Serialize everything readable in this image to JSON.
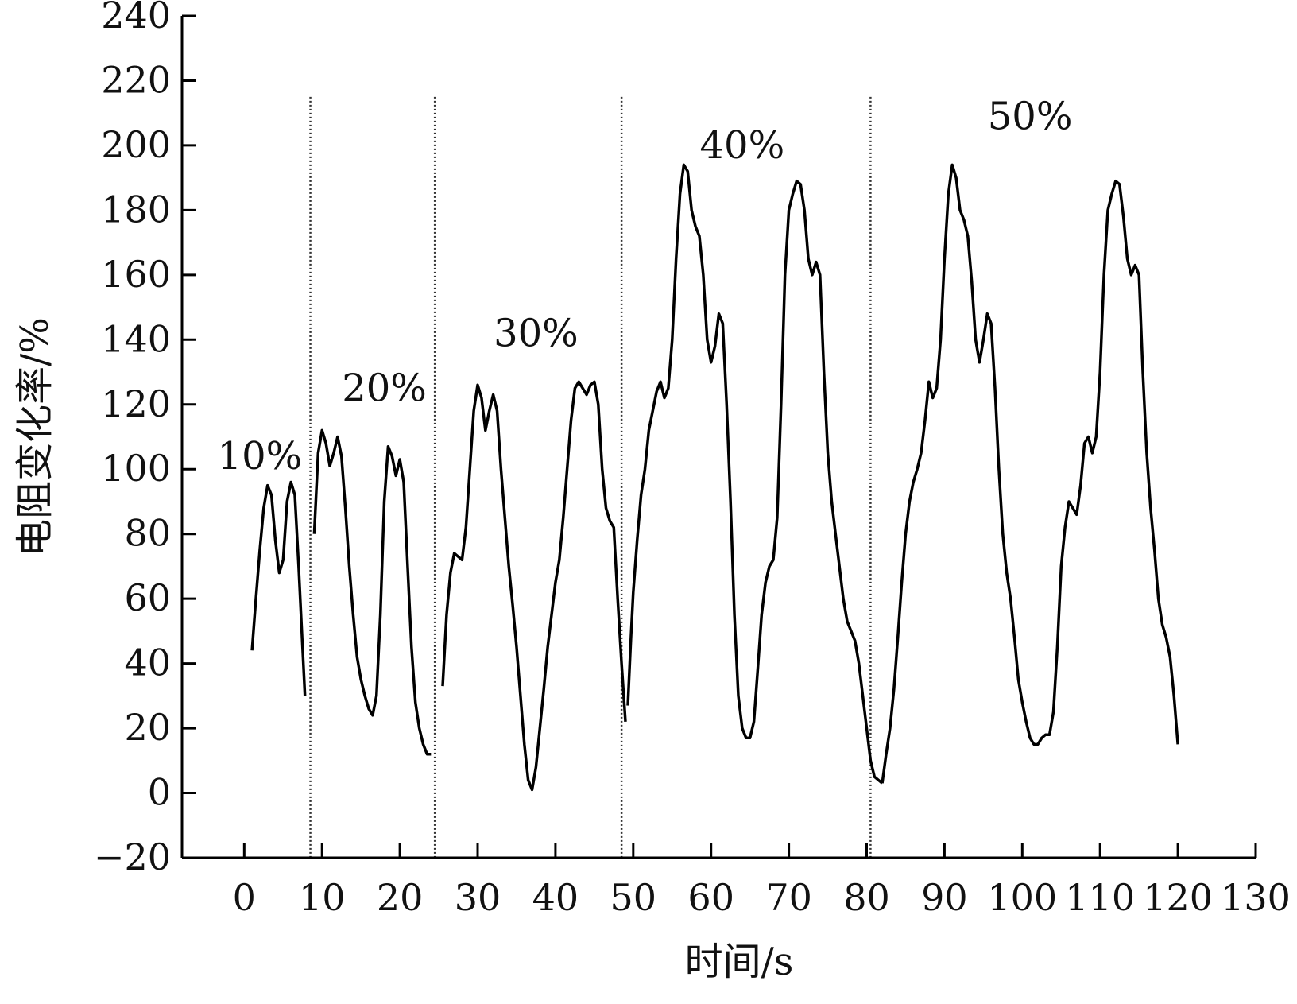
{
  "chart_data": {
    "type": "line",
    "xlabel": "时间/s",
    "ylabel": "电阻变化率/%",
    "xlim": [
      -8,
      130
    ],
    "ylim": [
      -20,
      240
    ],
    "xticks": [
      0,
      10,
      20,
      30,
      40,
      50,
      60,
      70,
      80,
      90,
      100,
      110,
      120,
      130
    ],
    "yticks": [
      -20,
      0,
      20,
      40,
      60,
      80,
      100,
      120,
      140,
      160,
      180,
      200,
      220,
      240
    ],
    "grid": false,
    "legend": "none",
    "dividers": [
      8.5,
      24.5,
      48.5,
      80.5
    ],
    "annotations": [
      {
        "text": "10%",
        "x": 2.0,
        "y": 100
      },
      {
        "text": "20%",
        "x": 18.0,
        "y": 121
      },
      {
        "text": "30%",
        "x": 37.5,
        "y": 138
      },
      {
        "text": "40%",
        "x": 64.0,
        "y": 196
      },
      {
        "text": "50%",
        "x": 101.0,
        "y": 205
      }
    ],
    "series": [
      {
        "segments": [
          [
            [
              1.0,
              44
            ],
            [
              1.5,
              60
            ],
            [
              2.0,
              75
            ],
            [
              2.5,
              88
            ],
            [
              3.0,
              95
            ],
            [
              3.5,
              92
            ],
            [
              4.0,
              78
            ],
            [
              4.5,
              68
            ],
            [
              5.0,
              72
            ],
            [
              5.5,
              90
            ],
            [
              6.0,
              96
            ],
            [
              6.5,
              92
            ],
            [
              7.0,
              70
            ],
            [
              7.5,
              45
            ],
            [
              7.8,
              30
            ]
          ],
          [
            [
              9.0,
              80
            ],
            [
              9.5,
              105
            ],
            [
              10.0,
              112
            ],
            [
              10.5,
              108
            ],
            [
              11.0,
              101
            ],
            [
              11.5,
              105
            ],
            [
              12.0,
              110
            ],
            [
              12.5,
              104
            ],
            [
              13.0,
              88
            ],
            [
              13.5,
              70
            ],
            [
              14.0,
              55
            ],
            [
              14.5,
              42
            ],
            [
              15.0,
              35
            ],
            [
              15.5,
              30
            ],
            [
              16.0,
              26
            ],
            [
              16.5,
              24
            ],
            [
              17.0,
              30
            ],
            [
              17.5,
              55
            ],
            [
              18.0,
              90
            ],
            [
              18.5,
              107
            ],
            [
              19.0,
              104
            ],
            [
              19.5,
              98
            ],
            [
              20.0,
              103
            ],
            [
              20.5,
              96
            ],
            [
              21.0,
              70
            ],
            [
              21.5,
              45
            ],
            [
              22.0,
              28
            ],
            [
              22.5,
              20
            ],
            [
              23.0,
              15
            ],
            [
              23.5,
              12
            ],
            [
              24.0,
              12
            ]
          ],
          [
            [
              25.5,
              33
            ],
            [
              26.0,
              55
            ],
            [
              26.5,
              68
            ],
            [
              27.0,
              74
            ],
            [
              27.5,
              73
            ],
            [
              28.0,
              72
            ],
            [
              28.5,
              82
            ],
            [
              29.0,
              100
            ],
            [
              29.5,
              118
            ],
            [
              30.0,
              126
            ],
            [
              30.5,
              122
            ],
            [
              31.0,
              112
            ],
            [
              31.5,
              118
            ],
            [
              32.0,
              123
            ],
            [
              32.5,
              118
            ],
            [
              33.0,
              100
            ],
            [
              33.5,
              85
            ],
            [
              34.0,
              70
            ],
            [
              34.5,
              58
            ],
            [
              35.0,
              45
            ],
            [
              35.5,
              30
            ],
            [
              36.0,
              15
            ],
            [
              36.5,
              4
            ],
            [
              37.0,
              1
            ],
            [
              37.5,
              8
            ],
            [
              38.0,
              20
            ],
            [
              38.5,
              32
            ],
            [
              39.0,
              45
            ],
            [
              39.5,
              55
            ],
            [
              40.0,
              65
            ],
            [
              40.5,
              72
            ],
            [
              41.0,
              85
            ],
            [
              41.5,
              100
            ],
            [
              42.0,
              115
            ],
            [
              42.5,
              125
            ],
            [
              43.0,
              127
            ],
            [
              43.5,
              125
            ],
            [
              44.0,
              123
            ],
            [
              44.5,
              126
            ],
            [
              45.0,
              127
            ],
            [
              45.5,
              120
            ],
            [
              46.0,
              100
            ],
            [
              46.5,
              88
            ],
            [
              47.0,
              84
            ],
            [
              47.5,
              82
            ],
            [
              48.0,
              60
            ],
            [
              48.5,
              40
            ],
            [
              49.0,
              22
            ]
          ],
          [
            [
              49.3,
              27
            ],
            [
              49.7,
              48
            ],
            [
              50.0,
              62
            ],
            [
              50.5,
              78
            ],
            [
              51.0,
              92
            ],
            [
              51.5,
              100
            ],
            [
              52.0,
              112
            ],
            [
              52.5,
              118
            ],
            [
              53.0,
              124
            ],
            [
              53.5,
              127
            ],
            [
              54.0,
              122
            ],
            [
              54.5,
              125
            ],
            [
              55.0,
              140
            ],
            [
              55.5,
              165
            ],
            [
              56.0,
              185
            ],
            [
              56.5,
              194
            ],
            [
              57.0,
              192
            ],
            [
              57.5,
              180
            ],
            [
              58.0,
              175
            ],
            [
              58.5,
              172
            ],
            [
              59.0,
              160
            ],
            [
              59.5,
              140
            ],
            [
              60.0,
              133
            ],
            [
              60.5,
              138
            ],
            [
              61.0,
              148
            ],
            [
              61.5,
              145
            ],
            [
              62.0,
              120
            ],
            [
              62.5,
              90
            ],
            [
              63.0,
              55
            ],
            [
              63.5,
              30
            ],
            [
              64.0,
              20
            ],
            [
              64.5,
              17
            ],
            [
              65.0,
              17
            ],
            [
              65.5,
              22
            ],
            [
              66.0,
              38
            ],
            [
              66.5,
              55
            ],
            [
              67.0,
              65
            ],
            [
              67.5,
              70
            ],
            [
              68.0,
              72
            ],
            [
              68.5,
              85
            ],
            [
              69.0,
              120
            ],
            [
              69.5,
              160
            ],
            [
              70.0,
              180
            ],
            [
              70.5,
              185
            ],
            [
              71.0,
              189
            ],
            [
              71.5,
              188
            ],
            [
              72.0,
              180
            ],
            [
              72.5,
              165
            ],
            [
              73.0,
              160
            ],
            [
              73.5,
              164
            ],
            [
              74.0,
              160
            ],
            [
              74.5,
              130
            ],
            [
              75.0,
              105
            ],
            [
              75.5,
              90
            ],
            [
              76.0,
              80
            ],
            [
              76.5,
              70
            ],
            [
              77.0,
              60
            ],
            [
              77.5,
              53
            ],
            [
              78.0,
              50
            ],
            [
              78.5,
              47
            ],
            [
              79.0,
              40
            ],
            [
              79.5,
              30
            ],
            [
              80.0,
              20
            ],
            [
              80.5,
              10
            ],
            [
              81.0,
              5
            ],
            [
              81.5,
              4
            ],
            [
              82.0,
              3
            ]
          ],
          [
            [
              82.0,
              3
            ],
            [
              82.5,
              12
            ],
            [
              83.0,
              20
            ],
            [
              83.5,
              32
            ],
            [
              84.0,
              48
            ],
            [
              84.5,
              65
            ],
            [
              85.0,
              80
            ],
            [
              85.5,
              90
            ],
            [
              86.0,
              96
            ],
            [
              86.5,
              100
            ],
            [
              87.0,
              105
            ],
            [
              87.5,
              115
            ],
            [
              88.0,
              127
            ],
            [
              88.5,
              122
            ],
            [
              89.0,
              125
            ],
            [
              89.5,
              140
            ],
            [
              90.0,
              165
            ],
            [
              90.5,
              185
            ],
            [
              91.0,
              194
            ],
            [
              91.5,
              190
            ],
            [
              92.0,
              180
            ],
            [
              92.5,
              177
            ],
            [
              93.0,
              172
            ],
            [
              93.5,
              158
            ],
            [
              94.0,
              140
            ],
            [
              94.5,
              133
            ],
            [
              95.0,
              140
            ],
            [
              95.5,
              148
            ],
            [
              96.0,
              145
            ],
            [
              96.5,
              125
            ],
            [
              97.0,
              100
            ],
            [
              97.5,
              80
            ],
            [
              98.0,
              68
            ],
            [
              98.5,
              60
            ],
            [
              99.0,
              48
            ],
            [
              99.5,
              35
            ],
            [
              100.0,
              28
            ],
            [
              100.5,
              22
            ],
            [
              101.0,
              17
            ],
            [
              101.5,
              15
            ],
            [
              102.0,
              15
            ],
            [
              102.5,
              17
            ],
            [
              103.0,
              18
            ],
            [
              103.5,
              18
            ],
            [
              104.0,
              25
            ],
            [
              104.5,
              45
            ],
            [
              105.0,
              70
            ],
            [
              105.5,
              82
            ],
            [
              106.0,
              90
            ],
            [
              106.5,
              88
            ],
            [
              107.0,
              86
            ],
            [
              107.5,
              95
            ],
            [
              108.0,
              108
            ],
            [
              108.5,
              110
            ],
            [
              109.0,
              105
            ],
            [
              109.5,
              110
            ],
            [
              110.0,
              130
            ],
            [
              110.5,
              160
            ],
            [
              111.0,
              180
            ],
            [
              111.5,
              185
            ],
            [
              112.0,
              189
            ],
            [
              112.5,
              188
            ],
            [
              113.0,
              178
            ],
            [
              113.5,
              165
            ],
            [
              114.0,
              160
            ],
            [
              114.5,
              163
            ],
            [
              115.0,
              160
            ],
            [
              115.5,
              130
            ],
            [
              116.0,
              105
            ],
            [
              116.5,
              88
            ],
            [
              117.0,
              75
            ],
            [
              117.5,
              60
            ],
            [
              118.0,
              52
            ],
            [
              118.5,
              48
            ],
            [
              119.0,
              42
            ],
            [
              119.5,
              30
            ],
            [
              120.0,
              15
            ]
          ]
        ]
      }
    ]
  }
}
